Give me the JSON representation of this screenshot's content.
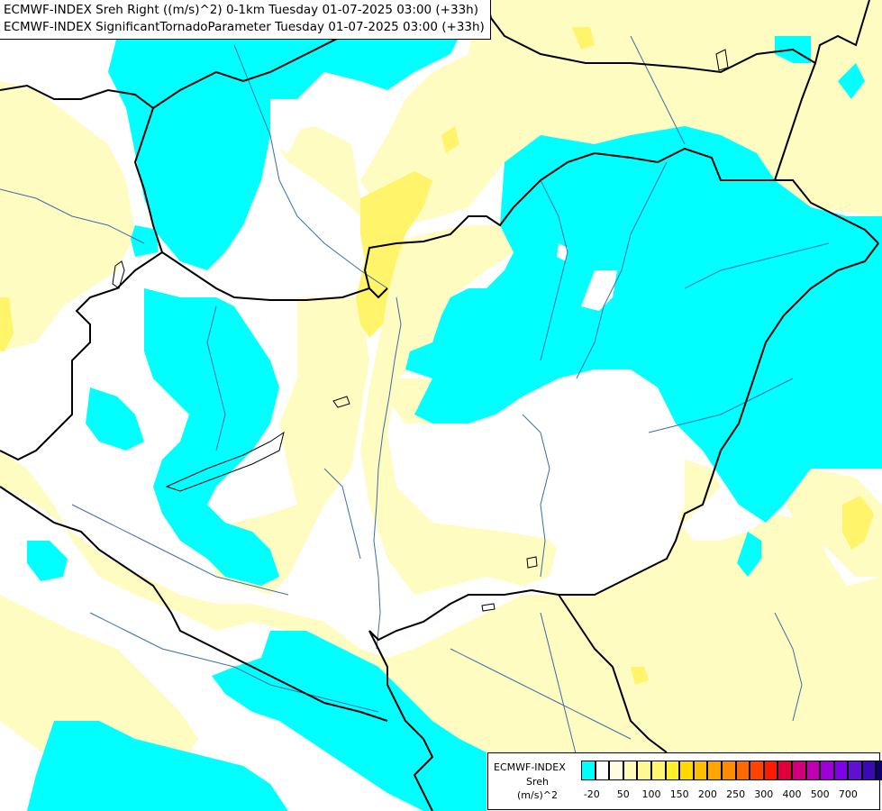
{
  "title": {
    "line1": "ECMWF-INDEX Sreh Right ((m/s)^2) 0-1km Tuesday 01-07-2025 03:00 (+33h)",
    "line2": "ECMWF-INDEX SignificantTornadoParameter Tuesday 01-07-2025 03:00 (+33h)"
  },
  "legend": {
    "label_model": "ECMWF-INDEX",
    "label_param": "Sreh",
    "label_unit": "(m/s)^2",
    "colors": [
      "#00ffff",
      "#ffffff",
      "#fffde0",
      "#fffcb8",
      "#fff994",
      "#fff56e",
      "#ffef2e",
      "#ffd800",
      "#ffbf00",
      "#ffa500",
      "#ff8c00",
      "#ff6a00",
      "#ff4400",
      "#ff1a00",
      "#e0003c",
      "#d0007a",
      "#c000b0",
      "#a000d8",
      "#8000e8",
      "#6010d0",
      "#3a0ab4",
      "#10006e"
    ],
    "ticks": [
      "-20",
      "50",
      "100",
      "150",
      "200",
      "250",
      "300",
      "400",
      "500",
      "700"
    ]
  },
  "colors": {
    "cyan": "#00ffff",
    "light_yellow": "#fffcc2",
    "yellow": "#fff46a",
    "border": "#000000",
    "river": "#3a6ea5"
  }
}
